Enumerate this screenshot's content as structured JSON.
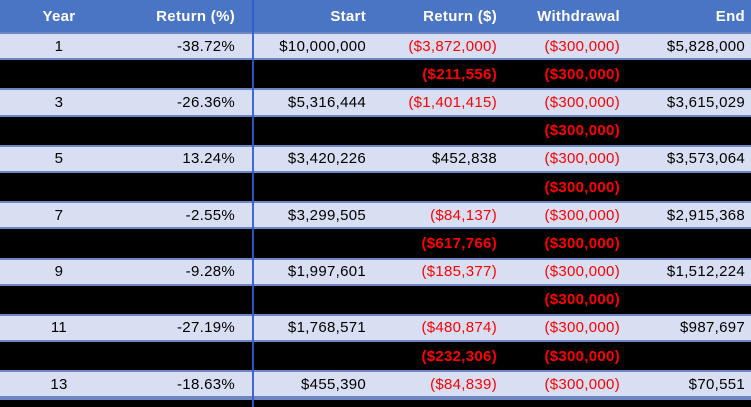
{
  "colors": {
    "header_bg": "#4a74c4",
    "header_text": "#ffffff",
    "light_row_bg": "#d9dff2",
    "redacted_row_bg": "#000000",
    "negative_red": "#ff0000",
    "row_border_blue": "#6d87c2",
    "column_divider_blue": "#2e5cd2"
  },
  "chart_data": {
    "type": "table",
    "columns": [
      "Year",
      "Return (%)",
      "Start",
      "Return ($)",
      "Withdrawal",
      "End"
    ],
    "rows": [
      [
        "1",
        "-38.72%",
        "$10,000,000",
        "($3,872,000)",
        "($300,000)",
        "$5,828,000"
      ],
      [
        null,
        null,
        null,
        "($211,556)",
        "($300,000)",
        null
      ],
      [
        "3",
        "-26.36%",
        "$5,316,444",
        "($1,401,415)",
        "($300,000)",
        "$3,615,029"
      ],
      [
        null,
        null,
        null,
        null,
        "($300,000)",
        null
      ],
      [
        "5",
        "13.24%",
        "$3,420,226",
        "$452,838",
        "($300,000)",
        "$3,573,064"
      ],
      [
        null,
        null,
        null,
        null,
        "($300,000)",
        null
      ],
      [
        "7",
        "-2.55%",
        "$3,299,505",
        "($84,137)",
        "($300,000)",
        "$2,915,368"
      ],
      [
        null,
        null,
        null,
        "($617,766)",
        "($300,000)",
        null
      ],
      [
        "9",
        "-9.28%",
        "$1,997,601",
        "($185,377)",
        "($300,000)",
        "$1,512,224"
      ],
      [
        null,
        null,
        null,
        null,
        "($300,000)",
        null
      ],
      [
        "11",
        "-27.19%",
        "$1,768,571",
        "($480,874)",
        "($300,000)",
        "$987,697"
      ],
      [
        null,
        null,
        null,
        "($232,306)",
        "($300,000)",
        null
      ],
      [
        "13",
        "-18.63%",
        "$455,390",
        "($84,839)",
        "($300,000)",
        "$70,551"
      ],
      [
        null,
        null,
        null,
        null,
        null,
        null
      ]
    ],
    "layout_notes": "Even-numbered-year rows are redacted with black fill; only red negative Return ($) and Withdrawal values remain visible. Negative values are shown in red within parentheses."
  }
}
